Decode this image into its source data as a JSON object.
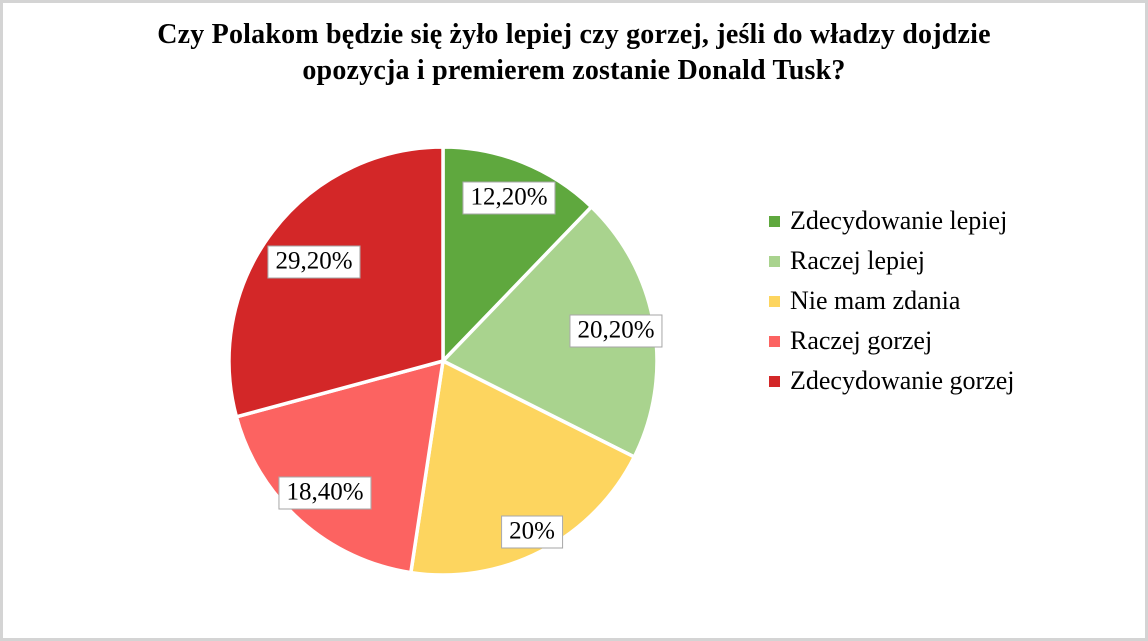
{
  "chart_data": {
    "type": "pie",
    "title": "Czy Polakom będzie się żyło lepiej czy gorzej, jeśli do władzy dojdzie opozycja i premierem zostanie Donald Tusk?",
    "title_lines": [
      "Czy Polakom będzie się żyło lepiej czy gorzej, jeśli do władzy dojdzie",
      "opozycja i premierem zostanie Donald Tusk?"
    ],
    "slices": [
      {
        "label": "Zdecydowanie lepiej",
        "value": 12.2,
        "value_label": "12,20%",
        "color": "#5FA83E"
      },
      {
        "label": "Raczej lepiej",
        "value": 20.2,
        "value_label": "20,20%",
        "color": "#A9D38E"
      },
      {
        "label": "Nie mam zdania",
        "value": 20.0,
        "value_label": "20%",
        "color": "#FDD55F"
      },
      {
        "label": "Raczej gorzej",
        "value": 18.4,
        "value_label": "18,40%",
        "color": "#FC6361"
      },
      {
        "label": "Zdecydowanie gorzej",
        "value": 29.2,
        "value_label": "29,20%",
        "color": "#D32728"
      }
    ],
    "start_angle_deg": 0,
    "direction": "clockwise",
    "legend_position": "right",
    "background": "#FFFFFF",
    "slice_stroke": "#FFFFFF",
    "label_box": {
      "fill": "#FFFFFF",
      "border": "#A6A6A6",
      "text_color": "#000000"
    }
  }
}
